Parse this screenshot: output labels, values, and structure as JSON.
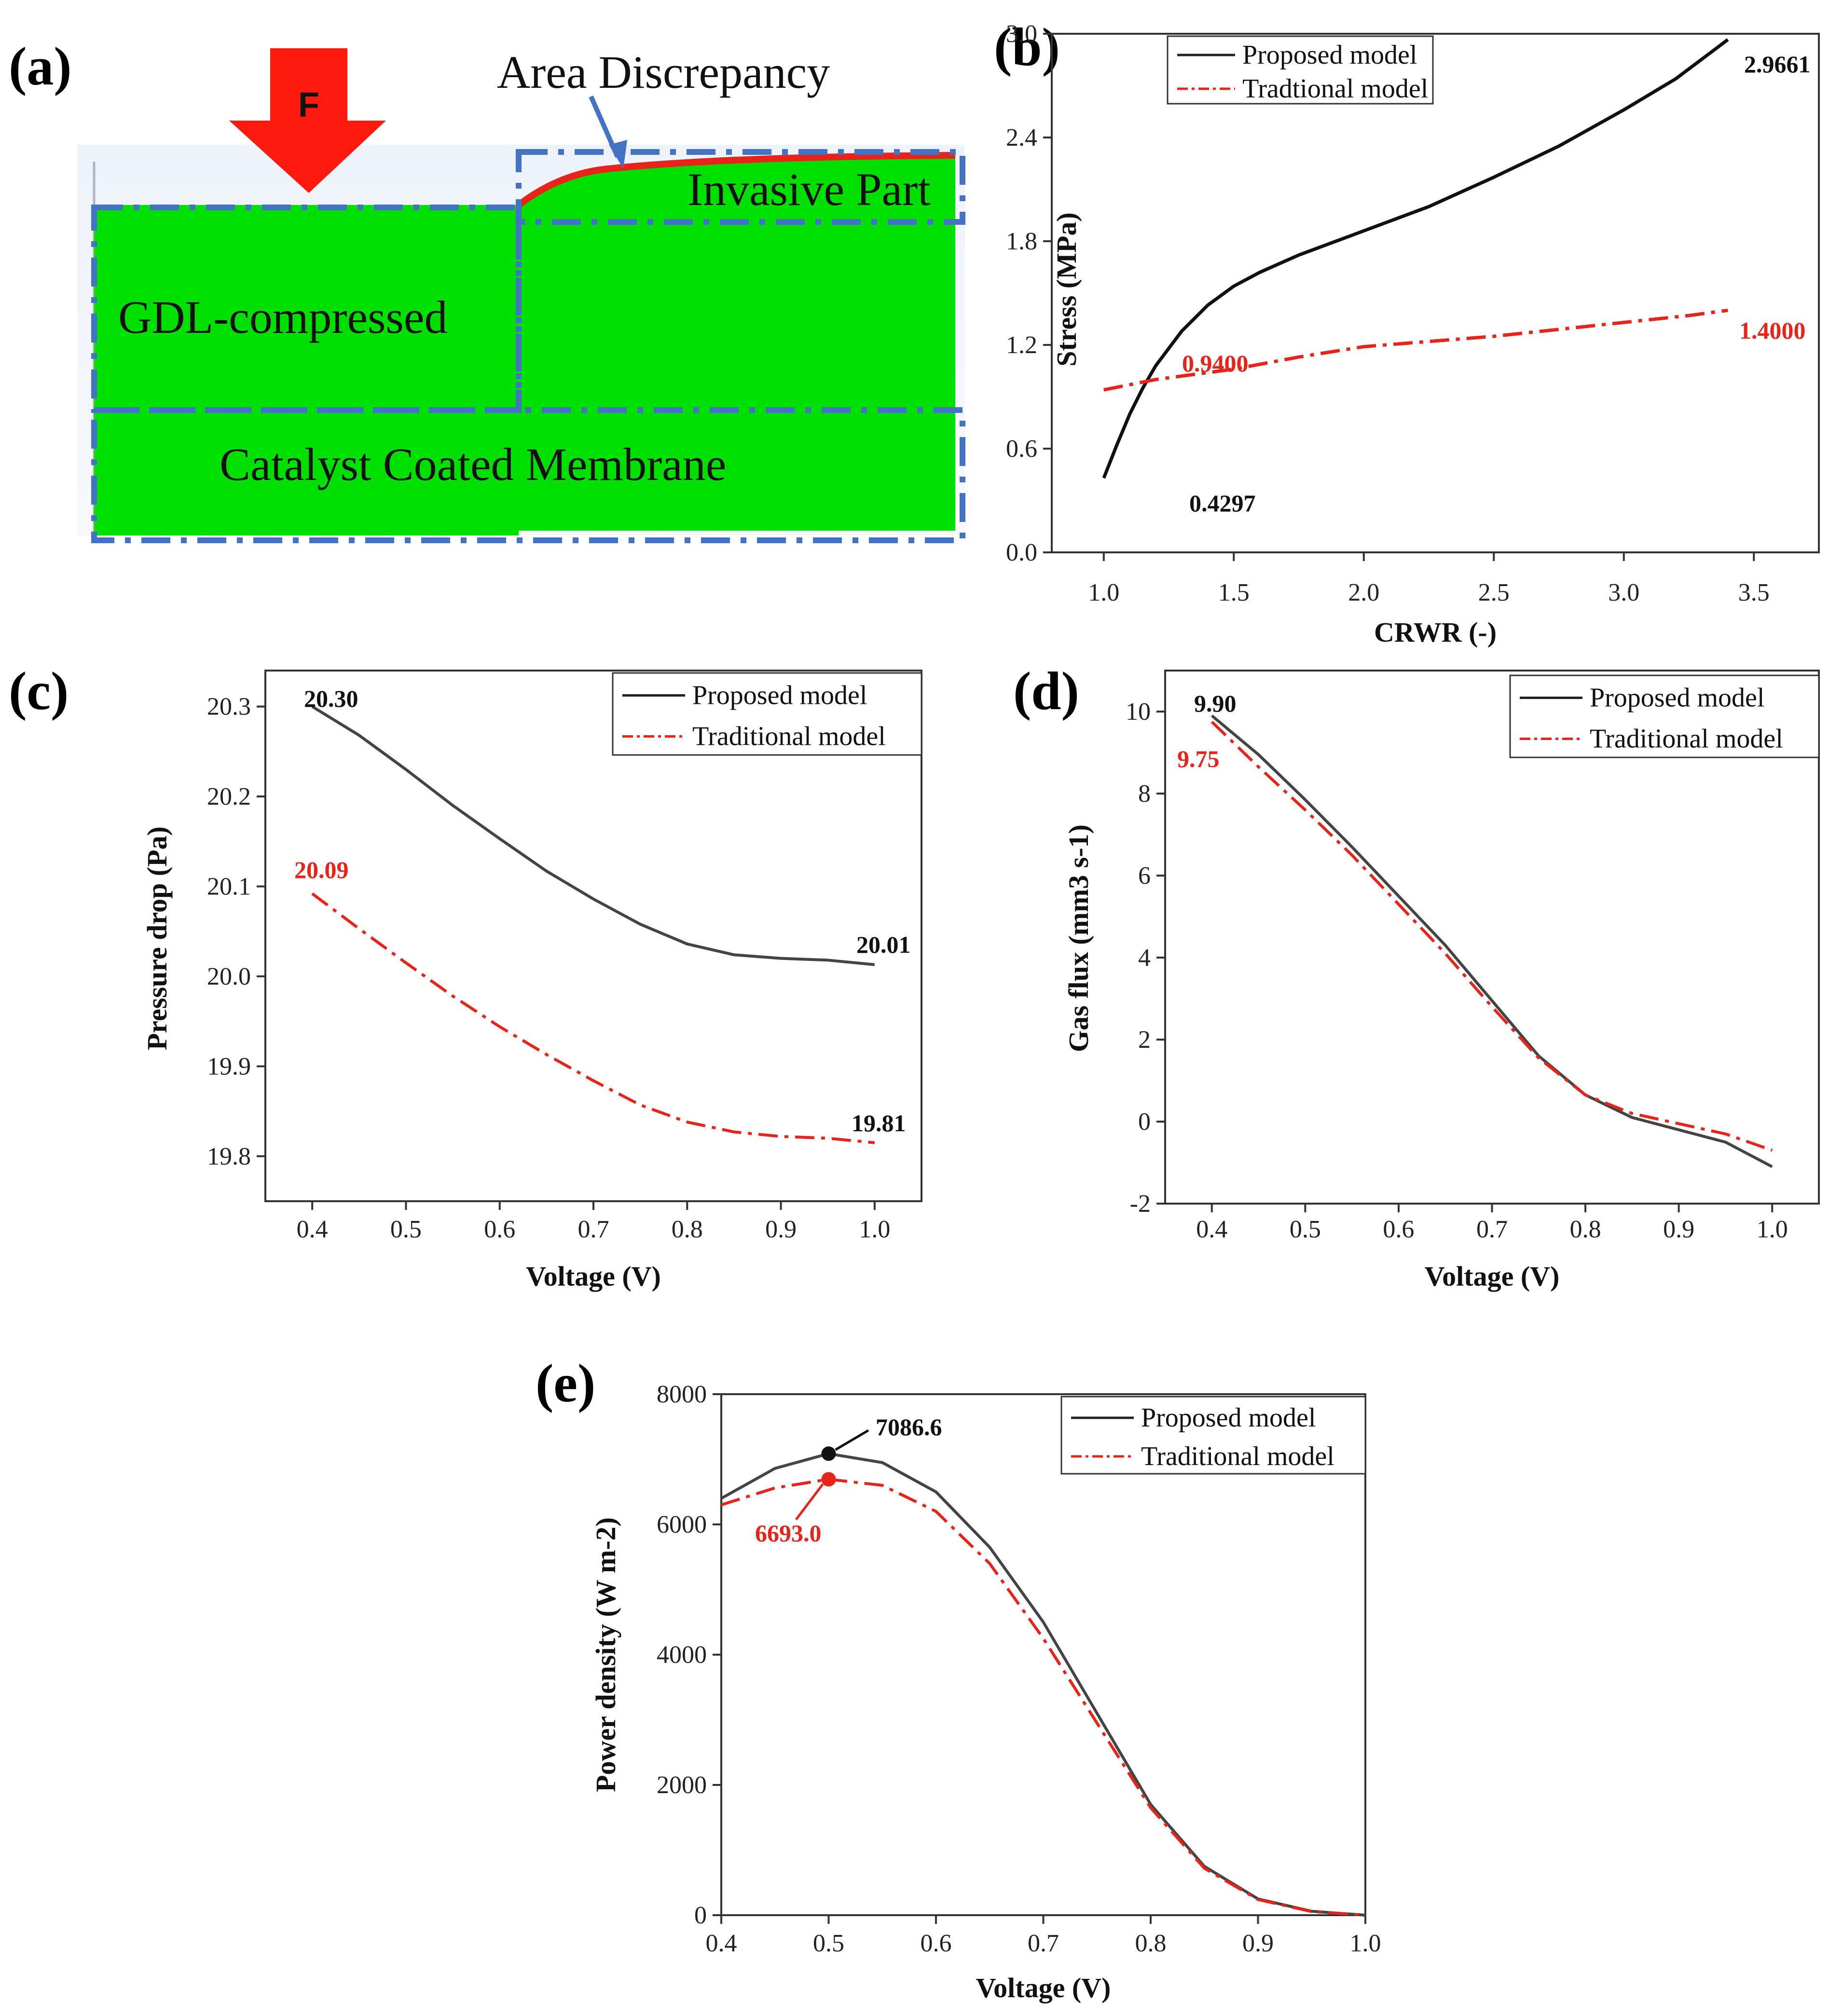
{
  "panel_labels": [
    "(a)",
    "(b)",
    "(c)",
    "(d)",
    "(e)"
  ],
  "colors": {
    "proposed": "#111111",
    "traditional": "#e8231a",
    "green": "#00e000",
    "dash_box": "#4472c4",
    "arrow": "#ff0000"
  },
  "diagram": {
    "force_label": "F",
    "area_discrepancy": "Area Discrepancy",
    "invasive_part": "Invasive Part",
    "gdl_compressed": "GDL-compressed",
    "ccm": "Catalyst Coated Membrane"
  },
  "chart_data": [
    {
      "id": "b",
      "type": "line",
      "xlabel": "CRWR (-)",
      "ylabel": "Stress (MPa)",
      "xlim": [
        0.8,
        3.75
      ],
      "ylim": [
        0.0,
        3.0
      ],
      "xticks": [
        "1.0",
        "1.5",
        "2.0",
        "2.5",
        "3.0",
        "3.5"
      ],
      "yticks": [
        "0.0",
        "0.6",
        "1.2",
        "1.8",
        "2.4",
        "3.0"
      ],
      "legend": {
        "position": "top-left",
        "entries": [
          "Proposed model",
          "Tradtional model"
        ]
      },
      "series": [
        {
          "name": "Proposed model",
          "style": "solid",
          "x": [
            1.0,
            1.05,
            1.1,
            1.15,
            1.2,
            1.3,
            1.4,
            1.5,
            1.6,
            1.75,
            2.0,
            2.25,
            2.5,
            2.75,
            3.0,
            3.2,
            3.4
          ],
          "y": [
            0.4297,
            0.62,
            0.8,
            0.95,
            1.08,
            1.28,
            1.43,
            1.54,
            1.62,
            1.72,
            1.86,
            2.0,
            2.17,
            2.35,
            2.56,
            2.74,
            2.9661
          ]
        },
        {
          "name": "Tradtional model",
          "style": "dashdot",
          "x": [
            1.0,
            1.2,
            1.5,
            1.75,
            2.0,
            2.25,
            2.5,
            2.75,
            3.0,
            3.25,
            3.4
          ],
          "y": [
            0.94,
            1.0,
            1.06,
            1.13,
            1.19,
            1.22,
            1.25,
            1.29,
            1.33,
            1.37,
            1.4
          ]
        }
      ],
      "annotations": [
        {
          "text": "0.4297",
          "color": "black"
        },
        {
          "text": "2.9661",
          "color": "black"
        },
        {
          "text": "0.9400",
          "color": "red"
        },
        {
          "text": "1.4000",
          "color": "red"
        }
      ]
    },
    {
      "id": "c",
      "type": "line",
      "xlabel": "Voltage (V)",
      "ylabel": "Pressure drop (Pa)",
      "xlim": [
        0.35,
        1.05
      ],
      "ylim": [
        19.75,
        20.34
      ],
      "xticks": [
        "0.4",
        "0.5",
        "0.6",
        "0.7",
        "0.8",
        "0.9",
        "1.0"
      ],
      "yticks": [
        "19.8",
        "19.9",
        "20.0",
        "20.1",
        "20.2",
        "20.3"
      ],
      "legend": {
        "position": "top-right",
        "entries": [
          "Proposed model",
          "Traditional model"
        ]
      },
      "series": [
        {
          "name": "Proposed model",
          "style": "solid",
          "x": [
            0.4,
            0.45,
            0.5,
            0.55,
            0.6,
            0.65,
            0.7,
            0.75,
            0.8,
            0.85,
            0.9,
            0.95,
            1.0
          ],
          "y": [
            20.3,
            20.268,
            20.23,
            20.19,
            20.153,
            20.117,
            20.086,
            20.058,
            20.036,
            20.024,
            20.02,
            20.018,
            20.013
          ]
        },
        {
          "name": "Traditional model",
          "style": "dashdot",
          "x": [
            0.4,
            0.45,
            0.5,
            0.55,
            0.6,
            0.65,
            0.7,
            0.75,
            0.8,
            0.85,
            0.9,
            0.95,
            1.0
          ],
          "y": [
            20.092,
            20.053,
            20.015,
            19.978,
            19.944,
            19.913,
            19.884,
            19.857,
            19.838,
            19.827,
            19.822,
            19.82,
            19.815
          ]
        }
      ],
      "annotations": [
        {
          "text": "20.30",
          "color": "black"
        },
        {
          "text": "20.01",
          "color": "black"
        },
        {
          "text": "20.09",
          "color": "red"
        },
        {
          "text": "19.81",
          "color": "black"
        }
      ]
    },
    {
      "id": "d",
      "type": "line",
      "xlabel": "Voltage (V)",
      "ylabel": "Gas flux (mm3 s-1)",
      "xlim": [
        0.35,
        1.05
      ],
      "ylim": [
        -2,
        11
      ],
      "xticks": [
        "0.4",
        "0.5",
        "0.6",
        "0.7",
        "0.8",
        "0.9",
        "1.0"
      ],
      "yticks": [
        "-2",
        "0",
        "2",
        "4",
        "6",
        "8",
        "10"
      ],
      "legend": {
        "position": "top-right",
        "entries": [
          "Proposed model",
          "Traditional model"
        ]
      },
      "series": [
        {
          "name": "Proposed model",
          "style": "solid",
          "x": [
            0.4,
            0.45,
            0.5,
            0.55,
            0.6,
            0.65,
            0.7,
            0.75,
            0.8,
            0.85,
            0.9,
            0.95,
            1.0
          ],
          "y": [
            9.9,
            8.95,
            7.85,
            6.7,
            5.5,
            4.3,
            2.95,
            1.6,
            0.65,
            0.1,
            -0.2,
            -0.5,
            -1.1
          ]
        },
        {
          "name": "Traditional model",
          "style": "dashdot",
          "x": [
            0.4,
            0.45,
            0.5,
            0.55,
            0.6,
            0.65,
            0.7,
            0.75,
            0.8,
            0.85,
            0.9,
            0.95,
            1.0
          ],
          "y": [
            9.75,
            8.65,
            7.6,
            6.5,
            5.3,
            4.1,
            2.8,
            1.55,
            0.65,
            0.2,
            -0.05,
            -0.3,
            -0.7
          ]
        }
      ],
      "annotations": [
        {
          "text": "9.90",
          "color": "black"
        },
        {
          "text": "9.75",
          "color": "red"
        }
      ]
    },
    {
      "id": "e",
      "type": "line",
      "xlabel": "Voltage (V)",
      "ylabel": "Power density (W m-2)",
      "xlim": [
        0.4,
        1.0
      ],
      "ylim": [
        0,
        8000
      ],
      "xticks": [
        "0.4",
        "0.5",
        "0.6",
        "0.7",
        "0.8",
        "0.9",
        "1.0"
      ],
      "yticks": [
        "0",
        "2000",
        "4000",
        "6000",
        "8000"
      ],
      "legend": {
        "position": "top-right",
        "entries": [
          "Proposed model",
          "Traditional model"
        ]
      },
      "series": [
        {
          "name": "Proposed model",
          "style": "solid",
          "x": [
            0.4,
            0.45,
            0.5,
            0.55,
            0.6,
            0.65,
            0.7,
            0.75,
            0.8,
            0.85,
            0.9,
            0.95,
            1.0
          ],
          "y": [
            6400,
            6860,
            7086.6,
            6950,
            6500,
            5650,
            4500,
            3100,
            1700,
            750,
            250,
            60,
            0
          ]
        },
        {
          "name": "Traditional model",
          "style": "dashdot",
          "x": [
            0.4,
            0.45,
            0.5,
            0.55,
            0.6,
            0.65,
            0.7,
            0.75,
            0.8,
            0.85,
            0.9,
            0.95,
            1.0
          ],
          "y": [
            6300,
            6560,
            6693.0,
            6600,
            6200,
            5400,
            4250,
            2950,
            1650,
            720,
            240,
            55,
            0
          ]
        }
      ],
      "peaks": [
        {
          "x": 0.5,
          "y": 7086.6,
          "color": "black"
        },
        {
          "x": 0.5,
          "y": 6693.0,
          "color": "red"
        }
      ],
      "annotations": [
        {
          "text": "7086.6",
          "color": "black"
        },
        {
          "text": "6693.0",
          "color": "red"
        }
      ]
    }
  ]
}
